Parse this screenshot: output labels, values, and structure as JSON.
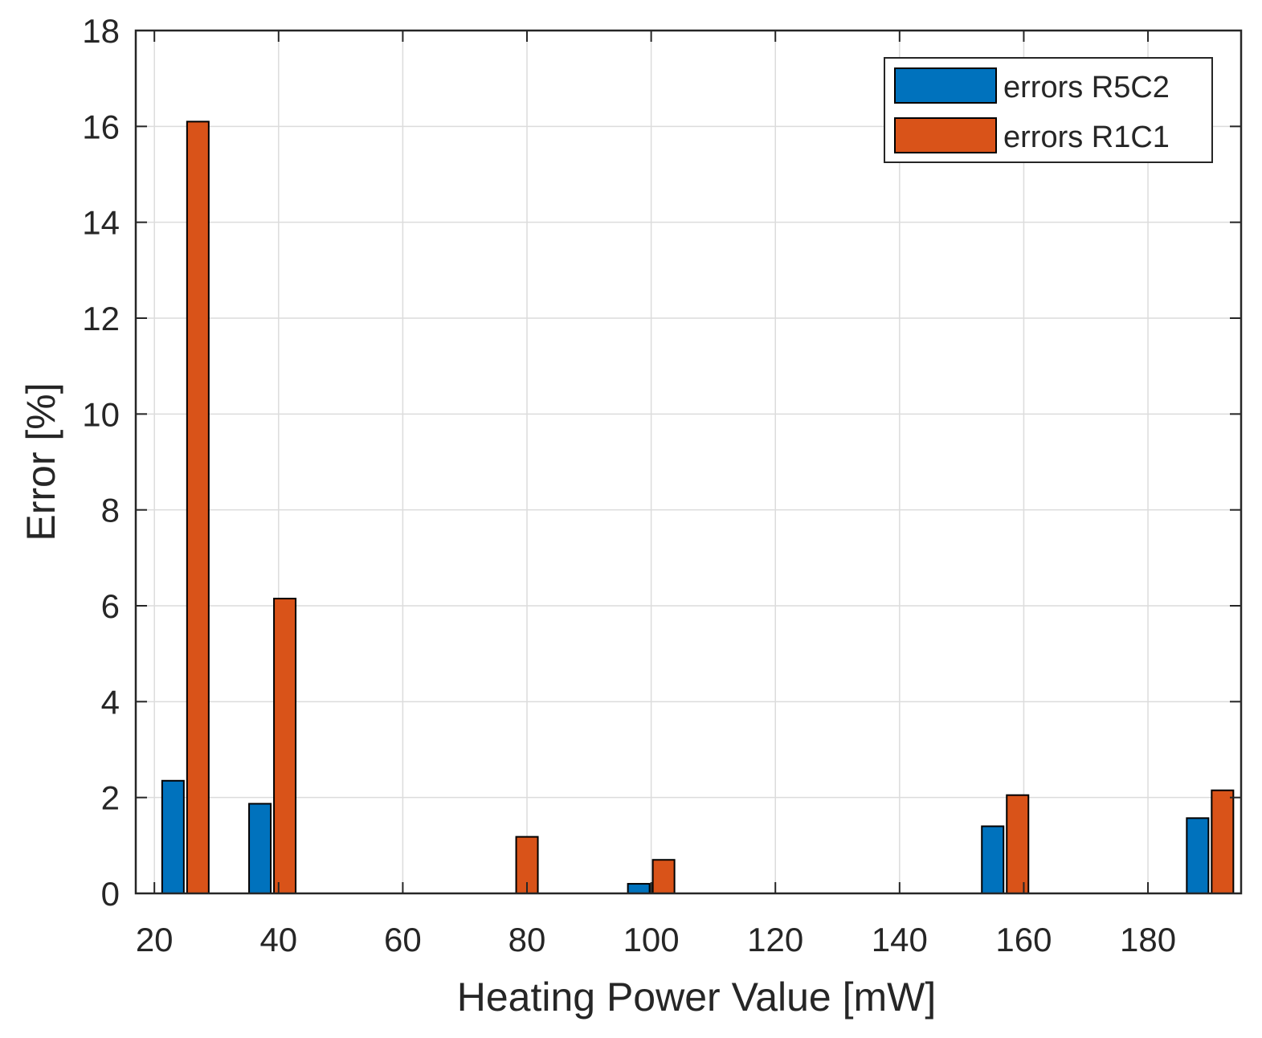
{
  "chart_data": {
    "type": "bar",
    "title": "",
    "xlabel": "Heating Power Value [mW]",
    "ylabel": "Error [%]",
    "xlim": [
      17,
      195
    ],
    "ylim": [
      0,
      18
    ],
    "xticks": [
      20,
      40,
      60,
      80,
      100,
      120,
      140,
      160,
      180
    ],
    "yticks": [
      0,
      2,
      4,
      6,
      8,
      10,
      12,
      14,
      16,
      18
    ],
    "grid": true,
    "legend_position": "top-right",
    "x": [
      25,
      39,
      78,
      100,
      157,
      190
    ],
    "series": [
      {
        "name": "errors R5C2",
        "color": "#0072BD",
        "values": [
          2.35,
          1.87,
          0,
          0.2,
          1.4,
          1.57
        ]
      },
      {
        "name": "errors R1C1",
        "color": "#D95319",
        "values": [
          16.1,
          6.15,
          1.18,
          0.7,
          2.05,
          2.15
        ]
      }
    ]
  }
}
